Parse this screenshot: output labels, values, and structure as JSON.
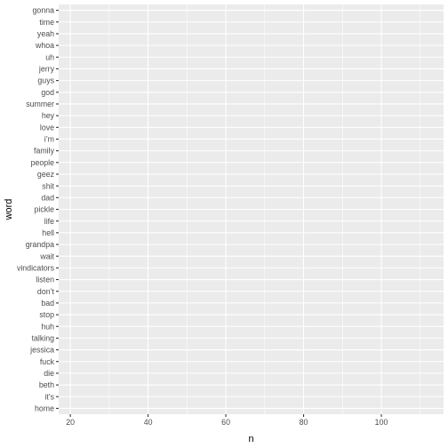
{
  "chart_data": {
    "type": "bar",
    "orientation": "horizontal",
    "categories": [
      "gonna",
      "time",
      "yeah",
      "whoa",
      "uh",
      "jerry",
      "guys",
      "god",
      "summer",
      "hey",
      "love",
      "i’m",
      "family",
      "people",
      "geez",
      "shit",
      "dad",
      "pickle",
      "life",
      "hell",
      "grandpa",
      "wait",
      "vindicators",
      "listen",
      "don’t",
      "bad",
      "stop",
      "huh",
      "talking",
      "jessica",
      "fuck",
      "die",
      "beth",
      "it’s",
      "home"
    ],
    "values": [
      null,
      null,
      null,
      null,
      null,
      null,
      null,
      null,
      null,
      null,
      null,
      null,
      null,
      null,
      null,
      null,
      null,
      null,
      null,
      null,
      null,
      null,
      null,
      null,
      null,
      null,
      null,
      null,
      null,
      null,
      null,
      null,
      null,
      null,
      null
    ],
    "xlabel": "n",
    "ylabel": "word",
    "xlim": [
      17,
      116
    ],
    "xticks": [
      20,
      40,
      60,
      80,
      100
    ],
    "grid": true,
    "panel_background": "#ebebeb",
    "grid_color": "#ffffff",
    "tick_color": "#333333"
  }
}
